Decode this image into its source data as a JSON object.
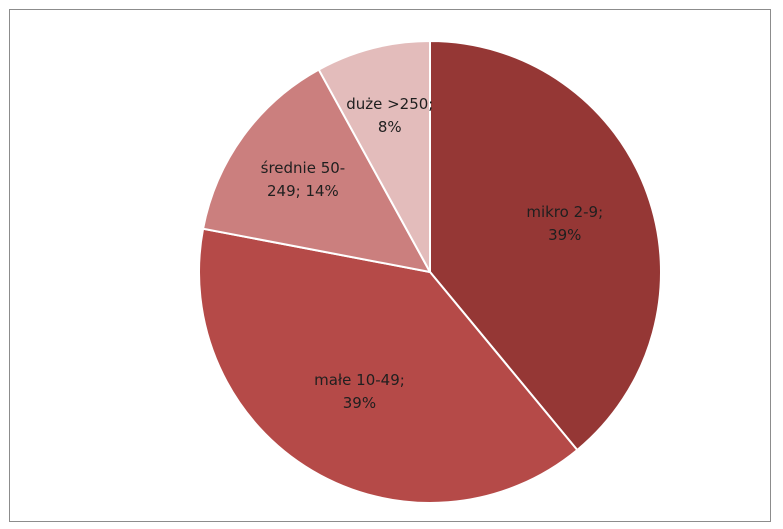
{
  "chart_data": {
    "type": "pie",
    "start": "top",
    "direction": "clockwise",
    "slices": [
      {
        "category": "mikro 2-9",
        "value": 39,
        "label_lines": [
          "mikro 2-9;",
          "39%"
        ],
        "color": "#953735"
      },
      {
        "category": "małe 10-49",
        "value": 39,
        "label_lines": [
          "małe 10-49;",
          "39%"
        ],
        "color": "#B54A48"
      },
      {
        "category": "średnie 50-249",
        "value": 14,
        "label_lines": [
          "średnie 50-",
          "249; 14%"
        ],
        "color": "#CB7F7E"
      },
      {
        "category": "duże >250",
        "value": 8,
        "label_lines": [
          "duże >250;",
          "8%"
        ],
        "color": "#E3BCBB"
      }
    ],
    "title": "",
    "legend": "none"
  }
}
